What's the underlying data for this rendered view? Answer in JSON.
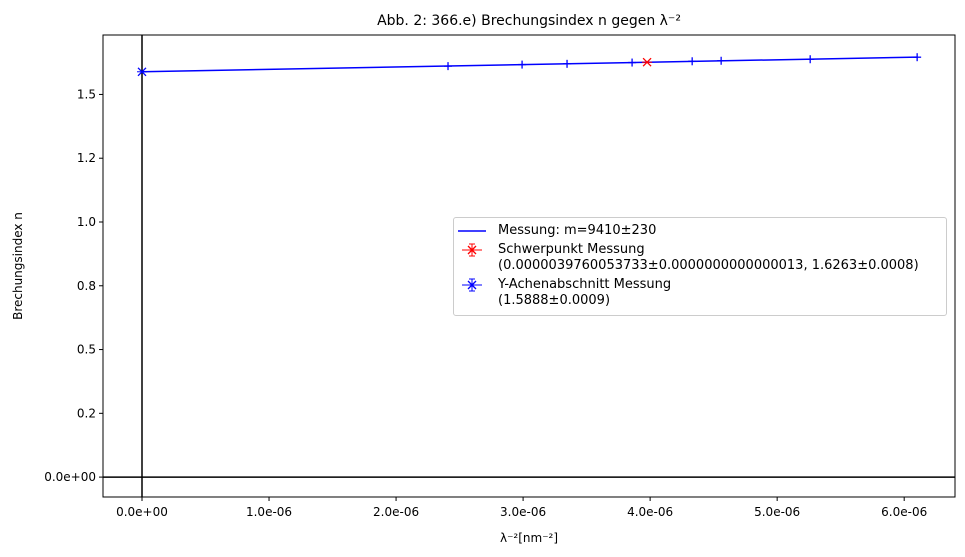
{
  "chart_data": {
    "type": "scatter",
    "title": "Abb. 2: 366.e) Brechungsindex n gegen λ⁻²",
    "x_label": "λ⁻²[nm⁻²]",
    "y_label": "Brechungsindex n",
    "xlim": [
      -3.07e-07,
      6.4e-06
    ],
    "ylim": [
      -0.078,
      1.733
    ],
    "xticks": [
      {
        "value": 0,
        "label": "0.0e+00"
      },
      {
        "value": 1e-06,
        "label": "1.0e-06"
      },
      {
        "value": 2e-06,
        "label": "2.0e-06"
      },
      {
        "value": 3e-06,
        "label": "3.0e-06"
      },
      {
        "value": 4e-06,
        "label": "4.0e-06"
      },
      {
        "value": 5e-06,
        "label": "5.0e-06"
      },
      {
        "value": 6e-06,
        "label": "6.0e-06"
      }
    ],
    "yticks": [
      {
        "value": 0,
        "label": "0.0e+00"
      },
      {
        "value": 0.25,
        "label": "0.2"
      },
      0.5,
      {
        "value": 0.75,
        "label": "0.8"
      },
      {
        "value": 1,
        "label": "1.0"
      },
      {
        "value": 1.25,
        "label": "1.2"
      },
      1.5
    ],
    "measurements": {
      "color": "#0000ff",
      "x": [
        2.409e-06,
        2.992e-06,
        3.346e-06,
        3.858e-06,
        4.331e-06,
        4.559e-06,
        5.26e-06,
        6.102e-06
      ],
      "values": [
        1.611,
        1.617,
        1.62,
        1.625,
        1.63,
        1.632,
        1.638,
        1.646
      ]
    },
    "series": [
      {
        "name": "Messung: m=9410±230",
        "color": "#0000ff",
        "style": "line",
        "x": [
          0,
          6.102e-06
        ],
        "values": [
          1.5888,
          1.6462
        ]
      },
      {
        "name": "Schwerpunkt Messung\n(0.0000039760053733±0.0000000000000013, 1.6263±0.0008)",
        "color": "#ff0000",
        "style": "errorbar",
        "x": [
          3.976e-06
        ],
        "values": [
          1.6263
        ]
      },
      {
        "name": "Y-Achenabschnitt Messung\n(1.5888±0.0009)",
        "color": "#0000ff",
        "style": "errorbar",
        "x": [
          0
        ],
        "values": [
          1.5888
        ]
      }
    ]
  }
}
